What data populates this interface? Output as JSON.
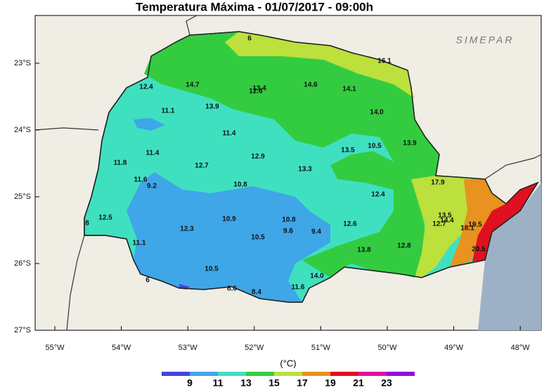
{
  "header": {
    "title": "Temperatura Máxima - 01/07/2017 - 09:00h",
    "logo": "SIMEPAR"
  },
  "axes": {
    "latitudes": [
      "23°S",
      "24°S",
      "25°S",
      "26°S",
      "27°S"
    ],
    "longitudes": [
      "55°W",
      "54°W",
      "53°W",
      "52°W",
      "51°W",
      "50°W",
      "49°W",
      "48°W"
    ]
  },
  "stations": [
    "12.4",
    "14.7",
    "13.4",
    "12.6",
    "14.6",
    "14.1",
    "16.1",
    "6",
    "11.1",
    "13.9",
    "14.0",
    "11.4",
    "13.5",
    "10.5",
    "13.9",
    "11.4",
    "12.9",
    "11.8",
    "12.7",
    "13.3",
    "11.6",
    "9.2",
    "10.8",
    "17.9",
    "12.4",
    "12.5",
    "8",
    "10.9",
    "10.8",
    "12.3",
    "9.6",
    "9.4",
    "12.6",
    "13.5",
    "14.4",
    "12.7",
    "18.1",
    "19.5",
    "11.1",
    "10.5",
    "13.8",
    "12.8",
    "20.5",
    "10.5",
    "14.0",
    "6",
    "8.6",
    "8.4",
    "11.6"
  ],
  "colorbar": {
    "unit": "(°C)",
    "labels": [
      9,
      11,
      13,
      15,
      17,
      19,
      21,
      23
    ],
    "colors": [
      "#4444dd",
      "#3fa6e8",
      "#3fe0c0",
      "#33cc40",
      "#bce03c",
      "#e8921f",
      "#e01020",
      "#e010a0",
      "#9010e0"
    ]
  }
}
